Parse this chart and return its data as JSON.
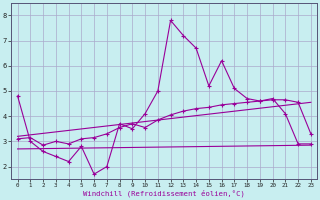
{
  "xlabel": "Windchill (Refroidissement éolien,°C)",
  "bg_color": "#c8eef0",
  "line_color": "#990099",
  "grid_color": "#aaaacc",
  "xlim": [
    -0.5,
    23.5
  ],
  "ylim": [
    1.5,
    8.5
  ],
  "yticks": [
    2,
    3,
    4,
    5,
    6,
    7,
    8
  ],
  "xticks": [
    0,
    1,
    2,
    3,
    4,
    5,
    6,
    7,
    8,
    9,
    10,
    11,
    12,
    13,
    14,
    15,
    16,
    17,
    18,
    19,
    20,
    21,
    22,
    23
  ],
  "series1_x": [
    0,
    1,
    2,
    3,
    4,
    5,
    6,
    7,
    8,
    9,
    10,
    11,
    12,
    13,
    14,
    15,
    16,
    17,
    18,
    19,
    20,
    21,
    22,
    23
  ],
  "series1_y": [
    4.8,
    3.0,
    2.6,
    2.4,
    2.2,
    2.8,
    1.7,
    2.0,
    3.7,
    3.5,
    4.1,
    5.0,
    7.8,
    7.2,
    6.7,
    5.2,
    6.2,
    5.1,
    4.7,
    4.6,
    4.7,
    4.1,
    2.9,
    2.9
  ],
  "series2_x": [
    0,
    1,
    2,
    3,
    4,
    5,
    6,
    7,
    8,
    9,
    10,
    11,
    12,
    13,
    14,
    15,
    16,
    17,
    18,
    19,
    20,
    21,
    22,
    23
  ],
  "series2_y": [
    3.1,
    3.15,
    2.85,
    3.0,
    2.9,
    3.1,
    3.15,
    3.3,
    3.55,
    3.7,
    3.55,
    3.85,
    4.05,
    4.2,
    4.3,
    4.35,
    4.45,
    4.5,
    4.55,
    4.6,
    4.65,
    4.65,
    4.55,
    3.3
  ],
  "series3_x": [
    0,
    23
  ],
  "series3_y": [
    2.7,
    2.85
  ],
  "series4_x": [
    0,
    23
  ],
  "series4_y": [
    3.2,
    4.55
  ]
}
